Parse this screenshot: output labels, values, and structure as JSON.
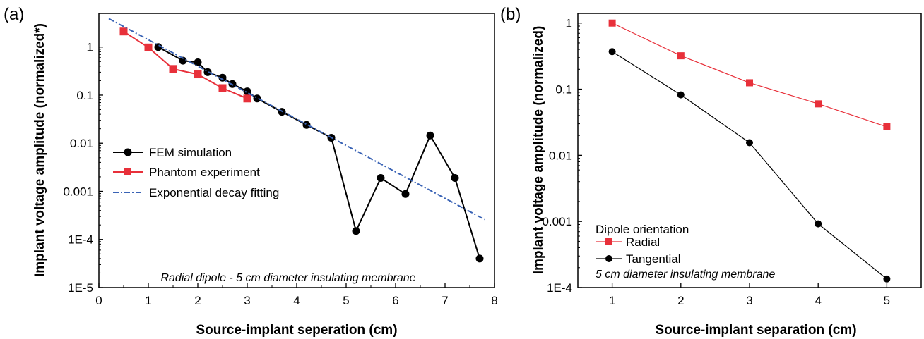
{
  "chart_data": [
    {
      "type": "line",
      "panel_label": "(a)",
      "xlabel": "Source-implant seperation (cm)",
      "ylabel": "Implant voltage amplitude (normalized*)",
      "xlim": [
        0,
        8
      ],
      "ylim": [
        1e-05,
        5
      ],
      "yscale": "log",
      "x_ticks": [
        0,
        1,
        2,
        3,
        4,
        5,
        6,
        7,
        8
      ],
      "x_tick_labels": [
        "0",
        "1",
        "2",
        "3",
        "4",
        "5",
        "6",
        "7",
        "8"
      ],
      "y_ticks": [
        1e-05,
        0.0001,
        0.001,
        0.01,
        0.1,
        1
      ],
      "y_tick_labels": [
        "1E-5",
        "1E-4",
        "0.001",
        "0.01",
        "0.1",
        "1"
      ],
      "annotation": "Radial dipole - 5 cm diameter insulating membrane",
      "legend_position": "center-left",
      "grid": false,
      "series": [
        {
          "name": "FEM simulation",
          "color": "#000000",
          "marker": "circle",
          "line_style": "solid",
          "x": [
            1.2,
            1.7,
            2.0,
            2.2,
            2.5,
            2.7,
            3.0,
            3.2,
            3.7,
            4.2,
            4.7,
            5.2,
            5.7,
            6.2,
            6.7,
            7.2,
            7.7
          ],
          "y": [
            1.0,
            0.52,
            0.48,
            0.3,
            0.23,
            0.17,
            0.12,
            0.085,
            0.045,
            0.024,
            0.013,
            0.00015,
            0.0019,
            0.00088,
            0.0145,
            0.0019,
            4e-05
          ]
        },
        {
          "name": "Phantom experiment",
          "color": "#e8303a",
          "marker": "square",
          "line_style": "solid",
          "x": [
            0.5,
            1.0,
            1.5,
            2.0,
            2.5,
            3.0
          ],
          "y": [
            2.1,
            0.98,
            0.35,
            0.27,
            0.14,
            0.085
          ]
        },
        {
          "name": "Exponential decay fitting",
          "color": "#3a63b5",
          "marker": "none",
          "line_style": "dash-dot",
          "x": [
            0.2,
            7.8
          ],
          "y": [
            3.9,
            0.00026
          ]
        }
      ]
    },
    {
      "type": "line",
      "panel_label": "(b)",
      "xlabel": "Source-implant separation (cm)",
      "ylabel": "Implant voltage amplitude (normalized)",
      "xlim": [
        0.5,
        5.5
      ],
      "ylim": [
        0.0001,
        1.4
      ],
      "yscale": "log",
      "x_ticks": [
        1,
        2,
        3,
        4,
        5
      ],
      "x_tick_labels": [
        "1",
        "2",
        "3",
        "4",
        "5"
      ],
      "y_ticks": [
        0.0001,
        0.001,
        0.01,
        0.1,
        1
      ],
      "y_tick_labels": [
        "1E-4",
        "0.001",
        "0.01",
        "0.1",
        "1"
      ],
      "legend_title": "Dipole orientation",
      "annotation": "5 cm diameter insulating membrane",
      "legend_position": "bottom-left",
      "grid": false,
      "series": [
        {
          "name": "Radial",
          "color": "#e8303a",
          "marker": "square",
          "line_style": "solid",
          "x": [
            1,
            2,
            3,
            4,
            5
          ],
          "y": [
            1.0,
            0.32,
            0.125,
            0.06,
            0.027
          ]
        },
        {
          "name": "Tangential",
          "color": "#000000",
          "marker": "circle",
          "line_style": "solid",
          "x": [
            1,
            2,
            3,
            4,
            5
          ],
          "y": [
            0.37,
            0.082,
            0.0155,
            0.00092,
            0.000135
          ]
        }
      ]
    }
  ]
}
